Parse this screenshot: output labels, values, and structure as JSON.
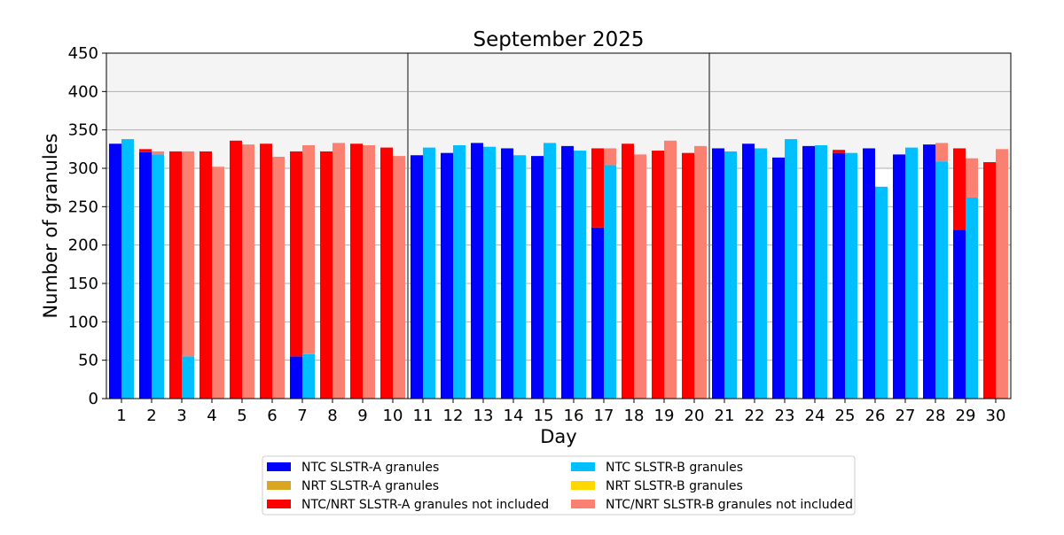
{
  "chart_data": {
    "type": "bar",
    "title": "September 2025",
    "xlabel": "Day",
    "ylabel": "Number of granules",
    "ylim": [
      0,
      450
    ],
    "yticks": [
      0,
      50,
      100,
      150,
      200,
      250,
      300,
      350,
      400,
      450
    ],
    "categories": [
      "1",
      "2",
      "3",
      "4",
      "5",
      "6",
      "7",
      "8",
      "9",
      "10",
      "11",
      "12",
      "13",
      "14",
      "15",
      "16",
      "17",
      "18",
      "19",
      "20",
      "21",
      "22",
      "23",
      "24",
      "25",
      "26",
      "27",
      "28",
      "29",
      "30"
    ],
    "highlight_band": [
      300,
      450
    ],
    "week_separators_after_day": [
      10,
      20
    ],
    "grid": true,
    "legend_placement": "bottom-center",
    "colors": {
      "ntc_a": "#0000ff",
      "nrt_a": "#daa520",
      "not_included_a": "#ff0000",
      "ntc_b": "#00bfff",
      "nrt_b": "#ffd700",
      "not_included_b": "#fa8072",
      "band": "#f4f4f4",
      "grid": "#b0b0b0",
      "separator": "#808080"
    },
    "series": [
      {
        "name": "NTC SLSTR-A granules",
        "key": "ntc_a",
        "values": [
          332,
          321,
          0,
          0,
          0,
          0,
          55,
          0,
          0,
          0,
          317,
          320,
          333,
          326,
          316,
          329,
          223,
          0,
          0,
          0,
          326,
          332,
          314,
          329,
          320,
          326,
          318,
          331,
          220,
          0
        ]
      },
      {
        "name": "NRT SLSTR-A granules",
        "key": "nrt_a",
        "values": [
          0,
          0,
          0,
          0,
          0,
          0,
          0,
          0,
          0,
          0,
          0,
          0,
          0,
          0,
          0,
          0,
          0,
          0,
          0,
          0,
          0,
          0,
          0,
          0,
          0,
          0,
          0,
          0,
          0,
          0
        ]
      },
      {
        "name": "NTC/NRT SLSTR-A granules not included",
        "key": "not_included_a",
        "values": [
          0,
          4,
          322,
          322,
          336,
          332,
          267,
          322,
          332,
          327,
          0,
          0,
          0,
          0,
          0,
          0,
          103,
          332,
          323,
          320,
          0,
          0,
          0,
          0,
          4,
          0,
          0,
          0,
          106,
          308
        ]
      },
      {
        "name": "NTC SLSTR-B granules",
        "key": "ntc_b",
        "values": [
          338,
          318,
          55,
          0,
          0,
          0,
          58,
          0,
          0,
          0,
          327,
          330,
          328,
          317,
          333,
          323,
          304,
          0,
          0,
          0,
          322,
          326,
          338,
          330,
          320,
          276,
          327,
          309,
          262,
          0
        ]
      },
      {
        "name": "NRT SLSTR-B granules",
        "key": "nrt_b",
        "values": [
          0,
          0,
          0,
          0,
          0,
          0,
          0,
          0,
          0,
          0,
          0,
          0,
          0,
          0,
          0,
          0,
          0,
          0,
          0,
          0,
          0,
          0,
          0,
          0,
          0,
          0,
          0,
          0,
          0,
          0
        ]
      },
      {
        "name": "NTC/NRT SLSTR-B granules not included",
        "key": "not_included_b",
        "values": [
          0,
          4,
          267,
          302,
          331,
          315,
          272,
          333,
          330,
          316,
          0,
          0,
          0,
          0,
          0,
          0,
          22,
          318,
          336,
          329,
          0,
          0,
          0,
          0,
          0,
          0,
          0,
          24,
          51,
          325
        ]
      }
    ],
    "stacks": {
      "A": [
        "ntc_a",
        "nrt_a",
        "not_included_a"
      ],
      "B": [
        "ntc_b",
        "nrt_b",
        "not_included_b"
      ]
    }
  }
}
